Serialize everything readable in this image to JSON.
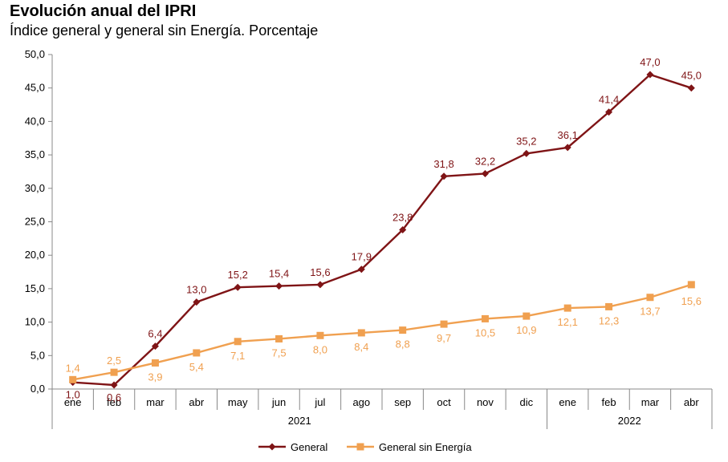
{
  "title": "Evolución anual del IPRI",
  "subtitle": "Índice general y general sin Energía. Porcentaje",
  "chart_data": {
    "type": "line",
    "categories": [
      "ene",
      "feb",
      "mar",
      "abr",
      "may",
      "jun",
      "jul",
      "ago",
      "sep",
      "oct",
      "nov",
      "dic",
      "ene",
      "feb",
      "mar",
      "abr"
    ],
    "groups": [
      {
        "label": "2021",
        "span": 12
      },
      {
        "label": "2022",
        "span": 4
      }
    ],
    "ylim": [
      0,
      50
    ],
    "yticks": [
      "0,0",
      "5,0",
      "10,0",
      "15,0",
      "20,0",
      "25,0",
      "30,0",
      "35,0",
      "40,0",
      "45,0",
      "50,0"
    ],
    "grid": false,
    "legend_position": "bottom",
    "series": [
      {
        "name": "General",
        "color": "#7f1416",
        "marker": "diamond",
        "values": [
          1.0,
          0.6,
          6.4,
          13.0,
          15.2,
          15.4,
          15.6,
          17.9,
          23.8,
          31.8,
          32.2,
          35.2,
          36.1,
          41.4,
          47.0,
          45.0
        ],
        "labels": [
          "1,0",
          "0,6",
          "6,4",
          "13,0",
          "15,2",
          "15,4",
          "15,6",
          "17,9",
          "23,8",
          "31,8",
          "32,2",
          "35,2",
          "36,1",
          "41,4",
          "47,0",
          "45,0"
        ]
      },
      {
        "name": "General sin Energía",
        "color": "#f0a050",
        "marker": "square",
        "values": [
          1.4,
          2.5,
          3.9,
          5.4,
          7.1,
          7.5,
          8.0,
          8.4,
          8.8,
          9.7,
          10.5,
          10.9,
          12.1,
          12.3,
          13.7,
          15.6
        ],
        "labels": [
          "1,4",
          "2,5",
          "3,9",
          "5,4",
          "7,1",
          "7,5",
          "8,0",
          "8,4",
          "8,8",
          "9,7",
          "10,5",
          "10,9",
          "12,1",
          "12,3",
          "13,7",
          "15,6"
        ]
      }
    ]
  }
}
